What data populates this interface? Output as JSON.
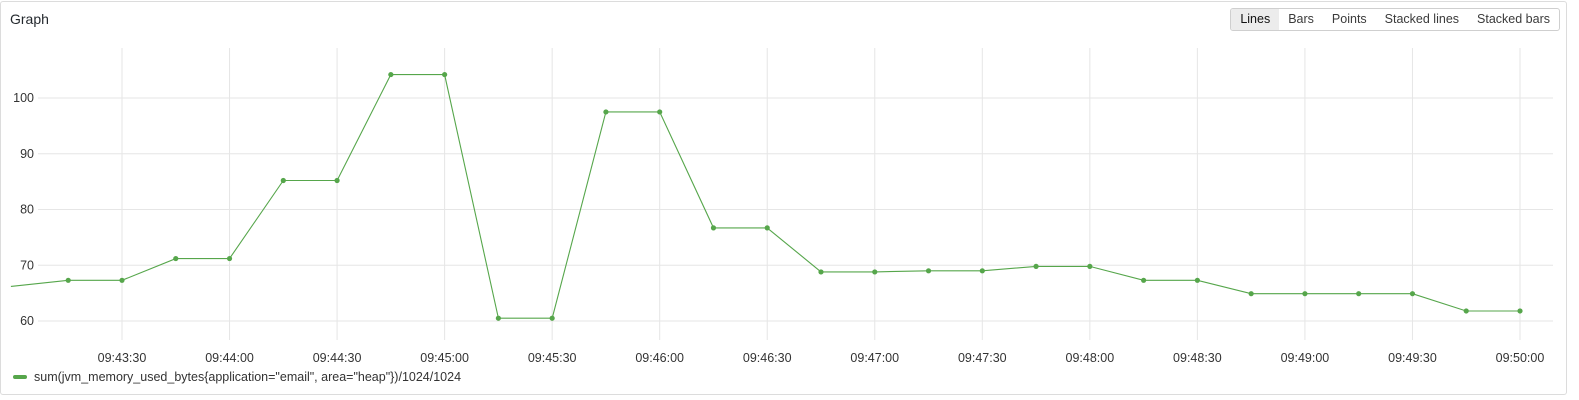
{
  "panel": {
    "title": "Graph"
  },
  "modes": [
    {
      "label": "Lines",
      "active": true
    },
    {
      "label": "Bars",
      "active": false
    },
    {
      "label": "Points",
      "active": false
    },
    {
      "label": "Stacked lines",
      "active": false
    },
    {
      "label": "Stacked bars",
      "active": false
    }
  ],
  "chart_data": {
    "type": "line",
    "title": "",
    "xlabel": "",
    "ylabel": "",
    "xlim": [
      "09:42:59",
      "09:50:00"
    ],
    "ylim": [
      56,
      110
    ],
    "grid": true,
    "legend_position": "bottom-left",
    "y_ticks": [
      60,
      70,
      80,
      90,
      100
    ],
    "x_ticks": [
      "09:43:30",
      "09:44:00",
      "09:44:30",
      "09:45:00",
      "09:45:30",
      "09:46:00",
      "09:46:30",
      "09:47:00",
      "09:47:30",
      "09:48:00",
      "09:48:30",
      "09:49:00",
      "09:49:30",
      "09:50:00"
    ],
    "series": [
      {
        "name": "sum(jvm_memory_used_bytes{application=\"email\", area=\"heap\"})/1024/1024",
        "color": "#56a64b",
        "points": [
          [
            "09:42:59",
            66.2
          ],
          [
            "09:43:15",
            67.3
          ],
          [
            "09:43:30",
            67.3
          ],
          [
            "09:43:45",
            71.2
          ],
          [
            "09:44:00",
            71.2
          ],
          [
            "09:44:15",
            85.2
          ],
          [
            "09:44:30",
            85.2
          ],
          [
            "09:44:45",
            104.2
          ],
          [
            "09:45:00",
            104.2
          ],
          [
            "09:45:15",
            60.5
          ],
          [
            "09:45:30",
            60.5
          ],
          [
            "09:45:45",
            97.5
          ],
          [
            "09:46:00",
            97.5
          ],
          [
            "09:46:15",
            76.7
          ],
          [
            "09:46:30",
            76.7
          ],
          [
            "09:46:45",
            68.8
          ],
          [
            "09:47:00",
            68.8
          ],
          [
            "09:47:15",
            69.0
          ],
          [
            "09:47:30",
            69.0
          ],
          [
            "09:47:45",
            69.8
          ],
          [
            "09:48:00",
            69.8
          ],
          [
            "09:48:15",
            67.3
          ],
          [
            "09:48:30",
            67.3
          ],
          [
            "09:48:45",
            64.9
          ],
          [
            "09:49:00",
            64.9
          ],
          [
            "09:49:15",
            64.9
          ],
          [
            "09:49:30",
            64.9
          ],
          [
            "09:49:45",
            61.8
          ],
          [
            "09:50:00",
            61.8
          ]
        ],
        "markers_from_index": 1
      }
    ]
  }
}
